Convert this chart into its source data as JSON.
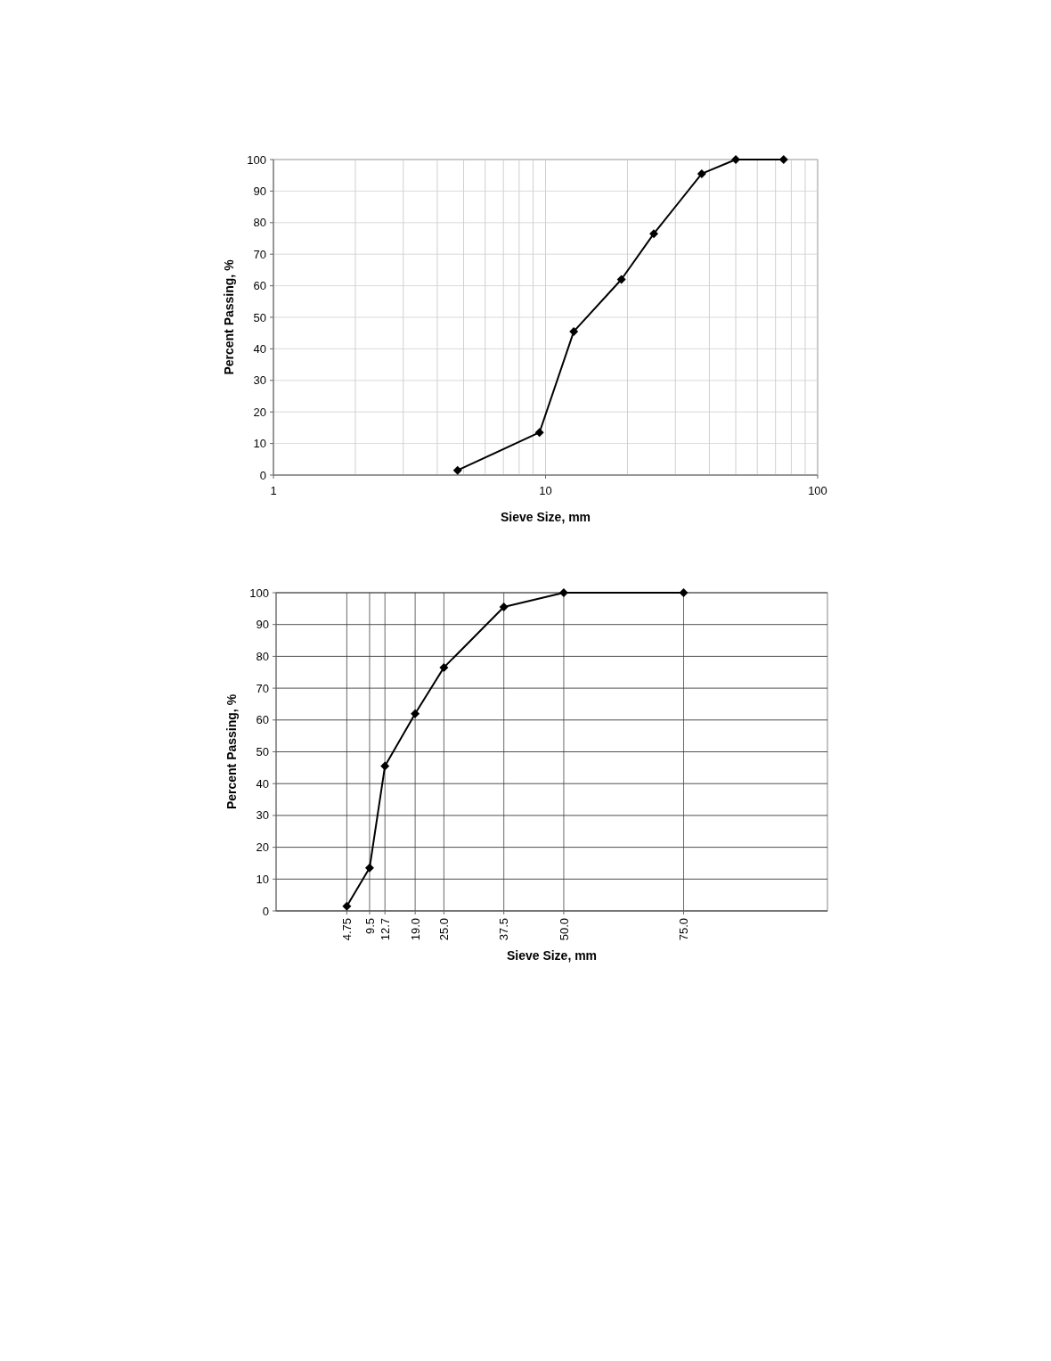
{
  "chart_data": [
    {
      "type": "line",
      "xlabel": "Sieve Size, mm",
      "ylabel": "Percent Passing, %",
      "log": "x",
      "xlim": [
        1,
        100
      ],
      "xticks": [
        1,
        10,
        100
      ],
      "ylim": [
        0,
        100
      ],
      "yticks": [
        0,
        10,
        20,
        30,
        40,
        50,
        60,
        70,
        80,
        90,
        100
      ],
      "grid": true,
      "marker": "diamond",
      "line_style": "solid",
      "series": [
        {
          "color": "#000000",
          "x": [
            4.75,
            9.5,
            12.7,
            19.0,
            25.0,
            37.5,
            50.0,
            75.0
          ],
          "values": [
            1.5,
            13.5,
            45.5,
            62,
            76.5,
            95.5,
            100,
            100
          ]
        }
      ]
    },
    {
      "type": "line",
      "xlabel": "Sieve Size, mm",
      "ylabel": "Percent Passing, %",
      "xlim": [
        -10,
        105
      ],
      "xticks": [
        {
          "value": 4.75,
          "label": "4.75"
        },
        {
          "value": 9.5,
          "label": "9.5"
        },
        {
          "value": 12.7,
          "label": "12.7"
        },
        {
          "value": 19.0,
          "label": "19.0"
        },
        {
          "value": 25.0,
          "label": "25.0"
        },
        {
          "value": 37.5,
          "label": "37.5"
        },
        {
          "value": 50.0,
          "label": "50.0"
        },
        {
          "value": 75.0,
          "label": "75.0"
        }
      ],
      "ylim": [
        0,
        100
      ],
      "yticks": [
        0,
        10,
        20,
        30,
        40,
        50,
        60,
        70,
        80,
        90,
        100
      ],
      "grid": true,
      "marker": "diamond",
      "line_style": "solid",
      "series": [
        {
          "color": "#000000",
          "x": [
            4.75,
            9.5,
            12.7,
            19.0,
            25.0,
            37.5,
            50.0,
            75.0
          ],
          "values": [
            1.5,
            13.5,
            45.5,
            62,
            76.5,
            95.5,
            100,
            100
          ]
        }
      ]
    }
  ]
}
